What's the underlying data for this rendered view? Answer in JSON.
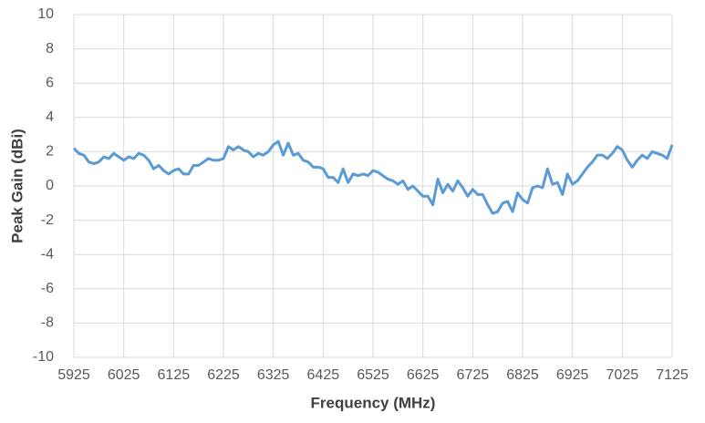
{
  "chart_data": {
    "type": "line",
    "xlabel": "Frequency (MHz)",
    "ylabel": "Peak Gain (dBi)",
    "x": [
      5925,
      5935,
      5945,
      5955,
      5965,
      5975,
      5985,
      5995,
      6005,
      6015,
      6025,
      6035,
      6045,
      6055,
      6065,
      6075,
      6085,
      6095,
      6105,
      6115,
      6125,
      6135,
      6145,
      6155,
      6165,
      6175,
      6185,
      6195,
      6205,
      6215,
      6225,
      6235,
      6245,
      6255,
      6265,
      6275,
      6285,
      6295,
      6305,
      6315,
      6325,
      6335,
      6345,
      6355,
      6365,
      6375,
      6385,
      6395,
      6405,
      6415,
      6425,
      6435,
      6445,
      6455,
      6465,
      6475,
      6485,
      6495,
      6505,
      6515,
      6525,
      6535,
      6545,
      6555,
      6565,
      6575,
      6585,
      6595,
      6605,
      6615,
      6625,
      6635,
      6645,
      6655,
      6665,
      6675,
      6685,
      6695,
      6705,
      6715,
      6725,
      6735,
      6745,
      6755,
      6765,
      6775,
      6785,
      6795,
      6805,
      6815,
      6825,
      6835,
      6845,
      6855,
      6865,
      6875,
      6885,
      6895,
      6905,
      6915,
      6925,
      6935,
      6945,
      6955,
      6965,
      6975,
      6985,
      6995,
      7005,
      7015,
      7025,
      7035,
      7045,
      7055,
      7065,
      7075,
      7085,
      7095,
      7105,
      7115,
      7125
    ],
    "series": [
      {
        "color": "#5b9bd5",
        "values": [
          2.2,
          1.9,
          1.8,
          1.4,
          1.3,
          1.4,
          1.7,
          1.6,
          1.9,
          1.7,
          1.5,
          1.7,
          1.6,
          1.9,
          1.8,
          1.5,
          1.0,
          1.2,
          0.9,
          0.7,
          0.9,
          1.0,
          0.7,
          0.7,
          1.2,
          1.2,
          1.4,
          1.6,
          1.5,
          1.5,
          1.6,
          2.3,
          2.1,
          2.3,
          2.1,
          2.0,
          1.7,
          1.9,
          1.8,
          2.0,
          2.4,
          2.6,
          1.8,
          2.5,
          1.8,
          1.9,
          1.5,
          1.4,
          1.1,
          1.1,
          1.0,
          0.5,
          0.5,
          0.2,
          1.0,
          0.2,
          0.7,
          0.6,
          0.7,
          0.6,
          0.9,
          0.8,
          0.6,
          0.4,
          0.3,
          0.1,
          0.3,
          -0.2,
          0.0,
          -0.3,
          -0.6,
          -0.6,
          -1.1,
          0.4,
          -0.4,
          0.1,
          -0.3,
          0.3,
          -0.1,
          -0.6,
          -0.2,
          -0.5,
          -0.5,
          -1.1,
          -1.6,
          -1.5,
          -1.0,
          -0.9,
          -1.5,
          -0.4,
          -0.8,
          -1.0,
          -0.1,
          0.0,
          -0.1,
          1.0,
          0.1,
          0.2,
          -0.5,
          0.7,
          0.1,
          0.3,
          0.7,
          1.1,
          1.4,
          1.8,
          1.8,
          1.6,
          1.9,
          2.3,
          2.1,
          1.5,
          1.1,
          1.5,
          1.8,
          1.6,
          2.0,
          1.9,
          1.8,
          1.6,
          2.4
        ]
      }
    ],
    "xlim": [
      5925,
      7125
    ],
    "xticks": [
      5925,
      6025,
      6125,
      6225,
      6325,
      6425,
      6525,
      6625,
      6725,
      6825,
      6925,
      7025,
      7125
    ],
    "ylim": [
      -10,
      10
    ],
    "yticks": [
      -10,
      -8,
      -6,
      -4,
      -2,
      0,
      2,
      4,
      6,
      8,
      10
    ],
    "grid": true
  }
}
